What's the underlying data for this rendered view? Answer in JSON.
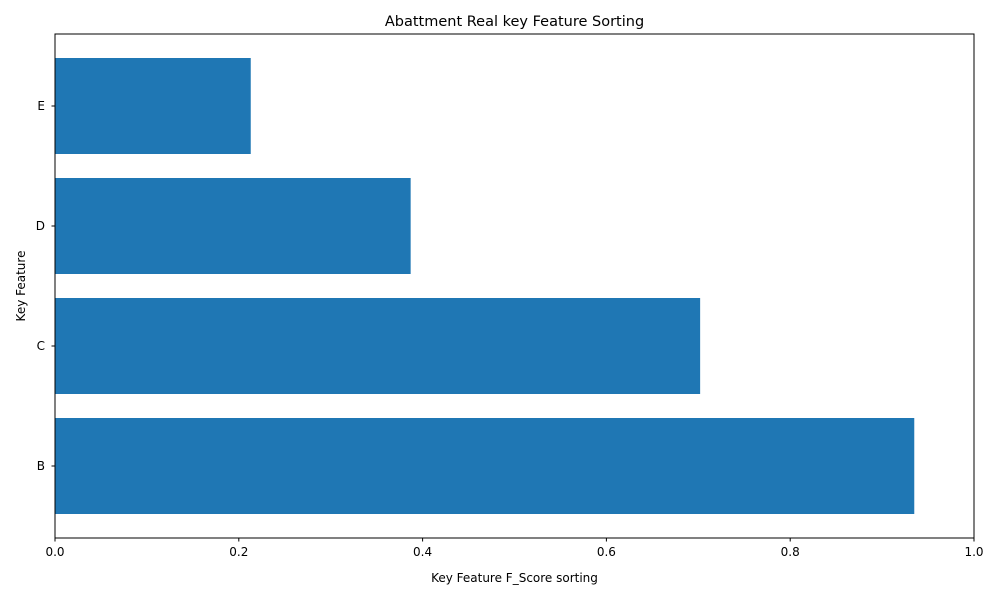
{
  "chart_data": {
    "type": "bar",
    "orientation": "horizontal",
    "title": "Abattment Real key Feature Sorting",
    "xlabel": "Key Feature F_Score sorting",
    "ylabel": "Key Feature",
    "categories": [
      "B",
      "C",
      "D",
      "E"
    ],
    "values": [
      0.935,
      0.702,
      0.387,
      0.213
    ],
    "xlim": [
      0,
      1.0
    ],
    "xticks": [
      "0.0",
      "0.2",
      "0.4",
      "0.6",
      "0.8",
      "1.0"
    ],
    "grid": false,
    "legend": "none",
    "bar_color": "#1f77b4"
  }
}
